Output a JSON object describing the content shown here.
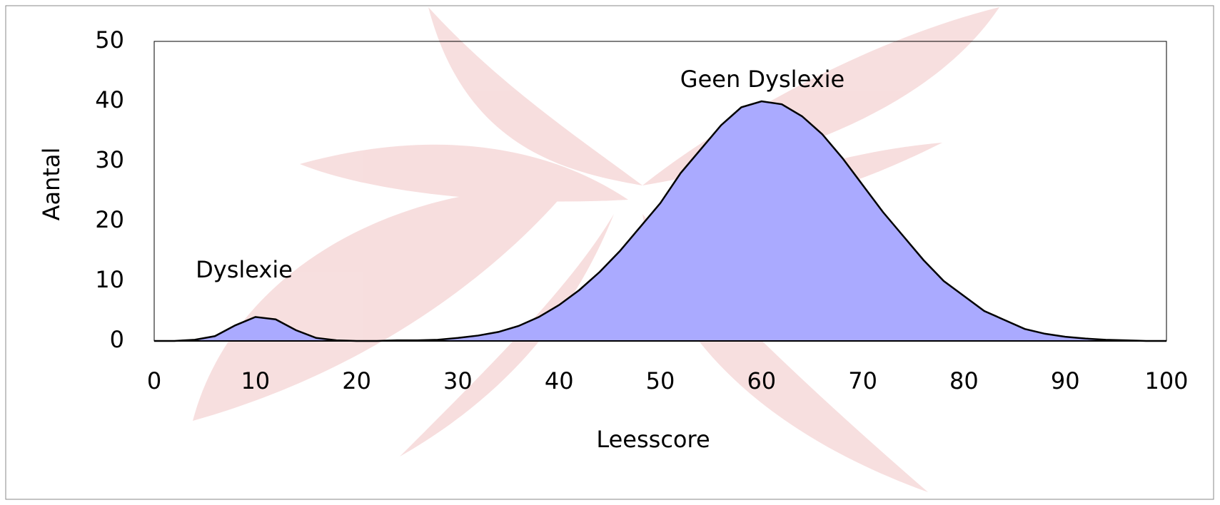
{
  "chart_data": {
    "type": "area",
    "x": [
      0,
      2,
      4,
      6,
      8,
      10,
      12,
      14,
      16,
      18,
      20,
      22,
      24,
      26,
      28,
      30,
      32,
      34,
      36,
      38,
      40,
      42,
      44,
      46,
      48,
      50,
      52,
      54,
      56,
      58,
      60,
      62,
      64,
      66,
      68,
      70,
      72,
      74,
      76,
      78,
      80,
      82,
      84,
      86,
      88,
      90,
      92,
      94,
      96,
      98,
      100
    ],
    "values": [
      0,
      0,
      0.2,
      0.8,
      2.6,
      4,
      3.6,
      1.8,
      0.5,
      0.1,
      0,
      0,
      0.1,
      0.1,
      0.2,
      0.5,
      0.9,
      1.5,
      2.5,
      4,
      6,
      8.5,
      11.5,
      15,
      19,
      23,
      28,
      32,
      36,
      39,
      40,
      39.5,
      37.5,
      34.5,
      30.5,
      26,
      21.5,
      17.5,
      13.5,
      10,
      7.5,
      5,
      3.5,
      2,
      1.2,
      0.7,
      0.4,
      0.2,
      0.1,
      0,
      0
    ],
    "color": "#aaaaff",
    "xlim": [
      0,
      100
    ],
    "xticks": [
      0,
      10,
      20,
      30,
      40,
      50,
      60,
      70,
      80,
      90,
      100
    ],
    "ylim": [
      0,
      50
    ],
    "yticks": [
      0,
      10,
      20,
      30,
      40,
      50
    ],
    "x_label": "Leesscore",
    "y_label": "Aantal",
    "annotations": [
      "Dyslexie",
      "Geen Dyslexie"
    ],
    "grid": false
  }
}
